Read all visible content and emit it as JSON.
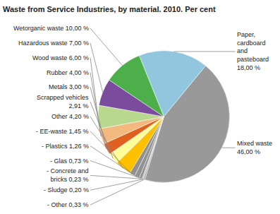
{
  "chart_data": {
    "type": "pie",
    "title": "Waste from Service Industries, by material. 2010. Per cent",
    "values": [
      18.0,
      46.0,
      0.33,
      0.2,
      0.23,
      0.73,
      1.26,
      1.45,
      4.2,
      2.91,
      3.0,
      4.0,
      6.0,
      7.0,
      10.0
    ],
    "value_labels": [
      "Paper,\ncardboard\nand\npasteboard\n18,00 %",
      "Mixed waste\n46,00 %",
      "- Other 0,33 %",
      "- Sludge 0,20 %",
      "- Concrete and\n  bricks 0,23 %",
      "- Glas 0,73 %",
      "- Plastics 1,26 %",
      "- EE-waste 1,45 %",
      "Other 4,20 %",
      "Scrapped vehicles\n2,91 %",
      "Metals 3,00 %",
      "Rubber 4,00 %",
      "Wood waste 6,00 %",
      "Hazardous waste 7,00 %",
      "Wetorganic waste 10,00 %"
    ],
    "colors": [
      "#92C5DE",
      "#999999",
      "#919191",
      "#919191",
      "#919191",
      "#919191",
      "#919191",
      "#919191",
      "#FFC000",
      "#FFFF99",
      "#E06020",
      "#F4B97F",
      "#B8D98D",
      "#7B4B9E",
      "#4DAF4A"
    ]
  }
}
